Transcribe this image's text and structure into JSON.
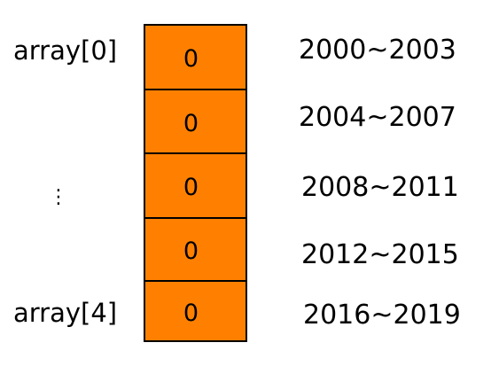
{
  "index_labels": {
    "first": "array[0]",
    "ellipsis": "⋮",
    "last": "array[4]"
  },
  "cells": [
    {
      "value": "0",
      "range": "2000~2003"
    },
    {
      "value": "0",
      "range": "2004~2007"
    },
    {
      "value": "0",
      "range": "2008~2011"
    },
    {
      "value": "0",
      "range": "2012~2015"
    },
    {
      "value": "0",
      "range": "2016~2019"
    }
  ],
  "colors": {
    "cell_fill": "#ff8000",
    "border": "#000000"
  }
}
